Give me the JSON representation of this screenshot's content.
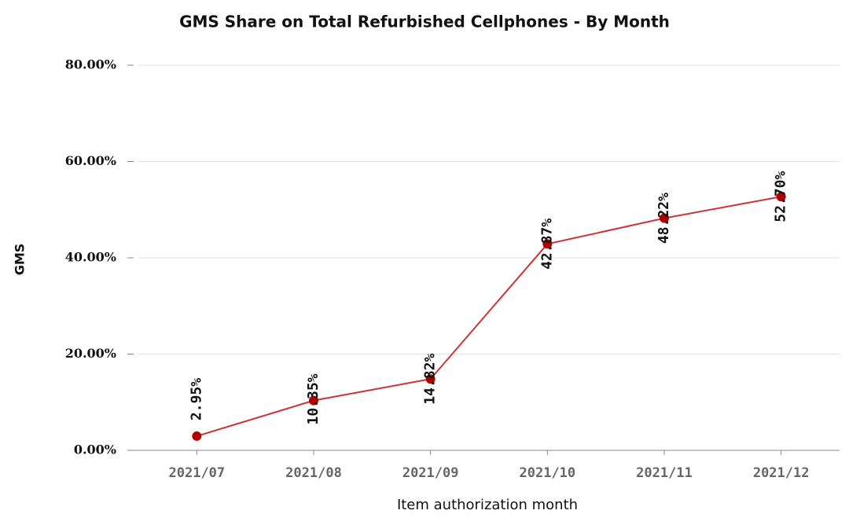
{
  "chart_data": {
    "type": "line",
    "title": "GMS Share on Total Refurbished Cellphones - By Month",
    "x_label": "Item authorization month",
    "y_label": "GMS",
    "categories": [
      "2021/07",
      "2021/08",
      "2021/09",
      "2021/10",
      "2021/11",
      "2021/12"
    ],
    "values": [
      2.95,
      10.35,
      14.82,
      42.87,
      48.22,
      52.7
    ],
    "value_labels": [
      "2.95%",
      "10.35%",
      "14.82%",
      "42.87%",
      "48.22%",
      "52.70%"
    ],
    "color": "#cc3333",
    "marker_color": "#b00000",
    "ylim": [
      0,
      80
    ],
    "yticks": [
      {
        "value": 0,
        "label": "0.00%"
      },
      {
        "value": 20,
        "label": "20.00%"
      },
      {
        "value": 40,
        "label": "40.00%"
      },
      {
        "value": 60,
        "label": "60.00%"
      },
      {
        "value": 80,
        "label": "80.00%"
      }
    ],
    "grid": true
  }
}
